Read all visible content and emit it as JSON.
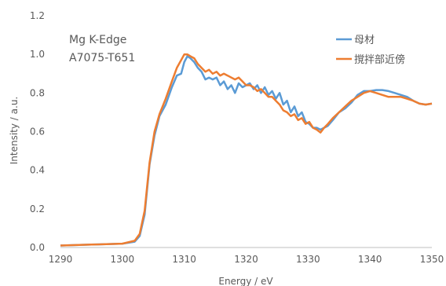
{
  "chart_data": {
    "type": "line",
    "xlabel": "Energy / eV",
    "ylabel": "Intensity / a.u.",
    "xlim": [
      1290,
      1350
    ],
    "ylim": [
      0,
      1.2
    ],
    "x_ticks": [
      "1290",
      "1300",
      "1310",
      "1320",
      "1330",
      "1340",
      "1350"
    ],
    "y_ticks": [
      "0.0",
      "0.2",
      "0.4",
      "0.6",
      "0.8",
      "1.0",
      "1.2"
    ],
    "grid": false,
    "legend_position": "top-right",
    "annotations": [
      "Mg K-Edge",
      "A7075-T651"
    ],
    "series": [
      {
        "name": "母材",
        "color": "#5B9BD5",
        "x": [
          1290,
          1295,
          1300,
          1302,
          1302.8,
          1303.6,
          1304.4,
          1305.2,
          1306,
          1307,
          1308,
          1308.8,
          1309.5,
          1310,
          1310.5,
          1311,
          1311.6,
          1312.2,
          1312.8,
          1313.4,
          1314,
          1314.6,
          1315.2,
          1315.8,
          1316.4,
          1317,
          1317.6,
          1318.2,
          1318.8,
          1319.4,
          1320,
          1320.6,
          1321.2,
          1321.8,
          1322.4,
          1323,
          1323.6,
          1324.2,
          1324.8,
          1325.4,
          1326,
          1326.6,
          1327.2,
          1327.8,
          1328.4,
          1329,
          1329.6,
          1330.2,
          1330.8,
          1331.4,
          1332,
          1332.6,
          1333.2,
          1334,
          1335,
          1336,
          1337,
          1338,
          1339,
          1340,
          1341,
          1342,
          1343,
          1344,
          1345,
          1346,
          1347,
          1348,
          1349,
          1350
        ],
        "y": [
          0.01,
          0.015,
          0.02,
          0.03,
          0.06,
          0.17,
          0.43,
          0.58,
          0.68,
          0.74,
          0.83,
          0.89,
          0.9,
          0.96,
          0.99,
          0.98,
          0.96,
          0.93,
          0.91,
          0.87,
          0.88,
          0.87,
          0.88,
          0.84,
          0.86,
          0.82,
          0.84,
          0.8,
          0.85,
          0.83,
          0.84,
          0.85,
          0.82,
          0.84,
          0.8,
          0.83,
          0.79,
          0.81,
          0.77,
          0.8,
          0.74,
          0.76,
          0.7,
          0.73,
          0.68,
          0.7,
          0.65,
          0.64,
          0.62,
          0.62,
          0.61,
          0.62,
          0.63,
          0.66,
          0.7,
          0.72,
          0.75,
          0.79,
          0.81,
          0.81,
          0.815,
          0.815,
          0.81,
          0.8,
          0.79,
          0.78,
          0.76,
          0.745,
          0.74,
          0.745
        ]
      },
      {
        "name": "撹拌部近傍",
        "color": "#ED7D31",
        "x": [
          1290,
          1295,
          1300,
          1302,
          1302.8,
          1303.6,
          1304.4,
          1305.2,
          1306,
          1307,
          1308,
          1308.8,
          1309.5,
          1310,
          1310.5,
          1311,
          1311.6,
          1312.2,
          1312.8,
          1313.4,
          1314,
          1314.6,
          1315.2,
          1315.8,
          1316.4,
          1317,
          1317.6,
          1318.2,
          1318.8,
          1319.4,
          1320,
          1320.6,
          1321.2,
          1321.8,
          1322.4,
          1323,
          1323.6,
          1324.2,
          1324.8,
          1325.4,
          1326,
          1326.6,
          1327.2,
          1327.8,
          1328.4,
          1329,
          1329.6,
          1330.2,
          1330.8,
          1331.4,
          1332,
          1332.6,
          1333.2,
          1334,
          1335,
          1336,
          1337,
          1338,
          1339,
          1340,
          1341,
          1342,
          1343,
          1344,
          1345,
          1346,
          1347,
          1348,
          1349,
          1350
        ],
        "y": [
          0.01,
          0.015,
          0.02,
          0.035,
          0.07,
          0.19,
          0.44,
          0.6,
          0.69,
          0.77,
          0.86,
          0.93,
          0.97,
          1.0,
          1.0,
          0.99,
          0.98,
          0.95,
          0.93,
          0.91,
          0.92,
          0.9,
          0.91,
          0.89,
          0.9,
          0.89,
          0.88,
          0.87,
          0.88,
          0.86,
          0.84,
          0.84,
          0.83,
          0.81,
          0.82,
          0.8,
          0.78,
          0.78,
          0.76,
          0.74,
          0.71,
          0.7,
          0.68,
          0.69,
          0.66,
          0.67,
          0.64,
          0.65,
          0.62,
          0.61,
          0.595,
          0.62,
          0.64,
          0.67,
          0.7,
          0.73,
          0.76,
          0.78,
          0.8,
          0.81,
          0.8,
          0.79,
          0.78,
          0.78,
          0.78,
          0.77,
          0.76,
          0.745,
          0.74,
          0.745
        ]
      }
    ]
  }
}
